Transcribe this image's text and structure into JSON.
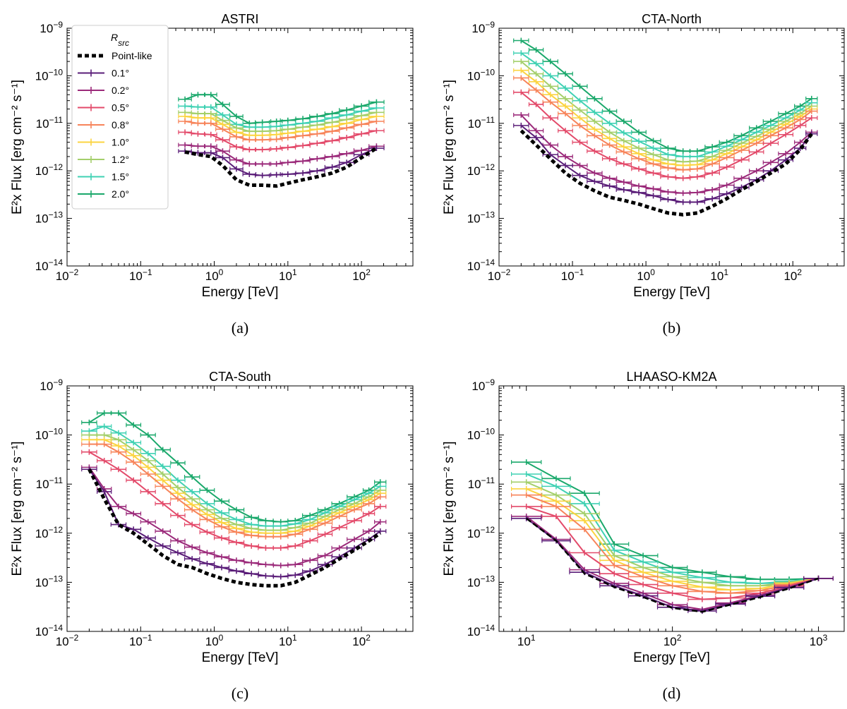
{
  "legend": {
    "title": "R",
    "title_sub": "src",
    "entries": [
      "Point-like",
      "0.1°",
      "0.2°",
      "0.5°",
      "0.8°",
      "1.0°",
      "1.2°",
      "1.5°",
      "2.0°"
    ]
  },
  "colors": {
    "Point-like": "#000000",
    "0.1°": "#5a1d78",
    "0.2°": "#9b2a7a",
    "0.5°": "#e34a6a",
    "0.8°": "#f7845a",
    "1.0°": "#fbd441",
    "1.2°": "#a4cf6b",
    "1.5°": "#3fd1b3",
    "2.0°": "#1aa86b"
  },
  "chart_data": [
    {
      "type": "line",
      "title": "ASTRI",
      "caption": "(a)",
      "xlabel": "Energy [TeV]",
      "ylabel": "E²x Flux [erg cm⁻² s⁻¹]",
      "xscale": "log",
      "yscale": "log",
      "xlim": [
        0.01,
        500
      ],
      "ylim": [
        1e-14,
        1e-09
      ],
      "xticks": [
        "10⁻²",
        "10⁻¹",
        "10⁰",
        "10¹",
        "10²"
      ],
      "yticks": [
        "10⁻¹⁴",
        "10⁻¹³",
        "10⁻¹²",
        "10⁻¹¹",
        "10⁻¹⁰",
        "10⁻⁹"
      ],
      "x": [
        0.4,
        0.6,
        0.9,
        1.3,
        2.0,
        3.0,
        4.5,
        7,
        10,
        16,
        25,
        40,
        63,
        100,
        160
      ],
      "series": [
        {
          "name": "Point-like",
          "values": [
            2.5e-12,
            2.2e-12,
            2e-12,
            1.3e-12,
            6.5e-13,
            5e-13,
            5e-13,
            4.8e-13,
            5.5e-13,
            6.5e-13,
            7.5e-13,
            9e-13,
            1.2e-12,
            1.9e-12,
            3e-12
          ]
        },
        {
          "name": "0.1°",
          "values": [
            2.6e-12,
            2.4e-12,
            2.4e-12,
            1.9e-12,
            1.1e-12,
            8.5e-13,
            8e-13,
            8.3e-13,
            8.5e-13,
            9e-13,
            1e-12,
            1.2e-12,
            1.5e-12,
            2.2e-12,
            3e-12
          ]
        },
        {
          "name": "0.2°",
          "values": [
            3.5e-12,
            3.3e-12,
            3.3e-12,
            2.6e-12,
            1.7e-12,
            1.4e-12,
            1.4e-12,
            1.4e-12,
            1.5e-12,
            1.6e-12,
            1.8e-12,
            2e-12,
            2.3e-12,
            2.7e-12,
            3.3e-12
          ]
        },
        {
          "name": "0.5°",
          "values": [
            6.5e-12,
            6e-12,
            5.8e-12,
            4.5e-12,
            3.2e-12,
            2.8e-12,
            2.8e-12,
            2.9e-12,
            3.1e-12,
            3.4e-12,
            3.8e-12,
            4.3e-12,
            5e-12,
            6e-12,
            7e-12
          ]
        },
        {
          "name": "0.8°",
          "values": [
            1.1e-11,
            1e-11,
            1e-11,
            7.5e-12,
            5.2e-12,
            4.5e-12,
            4.5e-12,
            4.6e-12,
            5e-12,
            5.5e-12,
            6e-12,
            6.8e-12,
            8e-12,
            9.5e-12,
            1.1e-11
          ]
        },
        {
          "name": "1.0°",
          "values": [
            1.4e-11,
            1.3e-11,
            1.3e-11,
            9.5e-12,
            6.5e-12,
            5.6e-12,
            5.6e-12,
            5.8e-12,
            6.2e-12,
            6.8e-12,
            7.5e-12,
            8.5e-12,
            1e-11,
            1.2e-11,
            1.4e-11
          ]
        },
        {
          "name": "1.2°",
          "values": [
            1.7e-11,
            1.6e-11,
            1.6e-11,
            1.15e-11,
            8e-12,
            6.8e-12,
            6.8e-12,
            7e-12,
            7.5e-12,
            8.3e-12,
            9.2e-12,
            1.05e-11,
            1.2e-11,
            1.45e-11,
            1.7e-11
          ]
        },
        {
          "name": "1.5°",
          "values": [
            2.3e-11,
            2.2e-11,
            2.2e-11,
            1.5e-11,
            9.5e-12,
            8.3e-12,
            8.3e-12,
            8.6e-12,
            9.2e-12,
            1e-11,
            1.1e-11,
            1.3e-11,
            1.5e-11,
            1.8e-11,
            2.1e-11
          ]
        },
        {
          "name": "2.0°",
          "values": [
            3.2e-11,
            4e-11,
            4e-11,
            2.5e-11,
            1.4e-11,
            1e-11,
            1.05e-11,
            1.1e-11,
            1.15e-11,
            1.25e-11,
            1.4e-11,
            1.6e-11,
            1.9e-11,
            2.3e-11,
            2.8e-11
          ]
        }
      ]
    },
    {
      "type": "line",
      "title": "CTA-North",
      "caption": "(b)",
      "xlabel": "Energy [TeV]",
      "ylabel": "E²x Flux [erg cm⁻² s⁻¹]",
      "xscale": "log",
      "yscale": "log",
      "xlim": [
        0.01,
        500
      ],
      "ylim": [
        1e-14,
        1e-09
      ],
      "xticks": [
        "10⁻²",
        "10⁻¹",
        "10⁰",
        "10¹",
        "10²"
      ],
      "yticks": [
        "10⁻¹⁴",
        "10⁻¹³",
        "10⁻¹²",
        "10⁻¹¹",
        "10⁻¹⁰",
        "10⁻⁹"
      ],
      "x": [
        0.02,
        0.032,
        0.05,
        0.08,
        0.126,
        0.2,
        0.32,
        0.5,
        0.8,
        1.26,
        2,
        3.2,
        5,
        8,
        12.6,
        20,
        32,
        50,
        80,
        126,
        180
      ],
      "series": [
        {
          "name": "Point-like",
          "values": [
            7e-12,
            3.5e-12,
            1.8e-12,
            9e-13,
            5.5e-13,
            3.8e-13,
            2.8e-13,
            2.4e-13,
            2e-13,
            1.6e-13,
            1.3e-13,
            1.2e-13,
            1.3e-13,
            1.8e-13,
            2.6e-13,
            4e-13,
            6e-13,
            9e-13,
            1.4e-12,
            2.8e-12,
            6e-12
          ]
        },
        {
          "name": "0.1°",
          "values": [
            9e-12,
            5e-12,
            2.2e-12,
            1.3e-12,
            8e-13,
            6e-13,
            4.8e-13,
            4e-13,
            3.5e-13,
            3e-13,
            2.5e-13,
            2.2e-13,
            2.2e-13,
            2.6e-13,
            3.3e-13,
            4.5e-13,
            6.5e-13,
            1e-12,
            1.7e-12,
            3e-12,
            6e-12
          ]
        },
        {
          "name": "0.2°",
          "values": [
            1.5e-11,
            7e-12,
            3.5e-12,
            2e-12,
            1.3e-12,
            9e-13,
            7e-13,
            5.8e-13,
            4.8e-13,
            4.2e-13,
            3.6e-13,
            3.4e-13,
            3.5e-13,
            4e-13,
            5e-13,
            7e-13,
            1e-12,
            1.5e-12,
            2.3e-12,
            4e-12,
            6.5e-12
          ]
        },
        {
          "name": "0.5°",
          "values": [
            4.5e-11,
            2.5e-11,
            1.3e-11,
            7e-12,
            4e-12,
            2.6e-12,
            1.8e-12,
            1.4e-12,
            1.1e-12,
            9e-13,
            7.5e-13,
            7e-13,
            7.5e-13,
            9e-13,
            1.2e-12,
            1.7e-12,
            2.5e-12,
            3.8e-12,
            5.8e-12,
            9e-12,
            1.3e-11
          ]
        },
        {
          "name": "0.8°",
          "values": [
            9e-11,
            5e-11,
            2.8e-11,
            1.6e-11,
            9e-12,
            5.5e-12,
            3.5e-12,
            2.5e-12,
            1.8e-12,
            1.4e-12,
            1.15e-12,
            1.05e-12,
            1.1e-12,
            1.4e-12,
            1.9e-12,
            2.7e-12,
            3.8e-12,
            5.5e-12,
            8e-12,
            1.2e-11,
            1.8e-11
          ]
        },
        {
          "name": "1.0°",
          "values": [
            1.3e-10,
            7.5e-11,
            4e-11,
            2.3e-11,
            1.3e-11,
            7.5e-12,
            4.8e-12,
            3.2e-12,
            2.3e-12,
            1.7e-12,
            1.4e-12,
            1.3e-12,
            1.35e-12,
            1.7e-12,
            2.3e-12,
            3.2e-12,
            4.5e-12,
            6.5e-12,
            9.5e-12,
            1.4e-11,
            2e-11
          ]
        },
        {
          "name": "1.2°",
          "values": [
            2e-10,
            1.1e-10,
            6e-11,
            3.3e-11,
            1.9e-11,
            1.1e-11,
            6.5e-12,
            4.3e-12,
            3e-12,
            2.2e-12,
            1.7e-12,
            1.55e-12,
            1.6e-12,
            2e-12,
            2.7e-12,
            3.8e-12,
            5.3e-12,
            7.5e-12,
            1.1e-11,
            1.6e-11,
            2.3e-11
          ]
        },
        {
          "name": "1.5°",
          "values": [
            3e-10,
            1.8e-10,
            1e-10,
            5.5e-11,
            3e-11,
            1.7e-11,
            1e-11,
            6.3e-12,
            4.2e-12,
            3e-12,
            2.2e-12,
            2e-12,
            2e-12,
            2.5e-12,
            3.3e-12,
            4.5e-12,
            6.5e-12,
            9e-12,
            1.3e-11,
            1.9e-11,
            2.7e-11
          ]
        },
        {
          "name": "2.0°",
          "values": [
            5.5e-10,
            3.5e-10,
            2e-10,
            1.1e-10,
            6e-11,
            3.3e-11,
            1.8e-11,
            1.1e-11,
            6.5e-12,
            4.3e-12,
            3e-12,
            2.6e-12,
            2.6e-12,
            3.2e-12,
            4e-12,
            5.5e-12,
            8e-12,
            1.1e-11,
            1.6e-11,
            2.3e-11,
            3.3e-11
          ]
        }
      ]
    },
    {
      "type": "line",
      "title": "CTA-South",
      "caption": "(c)",
      "xlabel": "Energy [TeV]",
      "ylabel": "E²x Flux [erg cm⁻² s⁻¹]",
      "xscale": "log",
      "yscale": "log",
      "xlim": [
        0.01,
        500
      ],
      "ylim": [
        1e-14,
        1e-09
      ],
      "xticks": [
        "10⁻²",
        "10⁻¹",
        "10⁰",
        "10¹",
        "10²"
      ],
      "yticks": [
        "10⁻¹⁴",
        "10⁻¹³",
        "10⁻¹²",
        "10⁻¹¹",
        "10⁻¹⁰",
        "10⁻⁹"
      ],
      "x": [
        0.02,
        0.032,
        0.05,
        0.08,
        0.126,
        0.2,
        0.32,
        0.5,
        0.8,
        1.26,
        2,
        3.2,
        5,
        8,
        12.6,
        20,
        32,
        50,
        80,
        126,
        180
      ],
      "series": [
        {
          "name": "Point-like",
          "values": [
            2e-11,
            5e-12,
            1.5e-12,
            1e-12,
            6e-13,
            3.5e-13,
            2.3e-13,
            2e-13,
            1.5e-13,
            1.2e-13,
            1e-13,
            9e-14,
            8.5e-14,
            8.5e-14,
            1e-13,
            1.4e-13,
            2e-13,
            3e-13,
            4.5e-13,
            7e-13,
            1e-12
          ]
        },
        {
          "name": "0.1°",
          "values": [
            2e-11,
            7e-12,
            1.5e-12,
            1.2e-12,
            8e-13,
            5.5e-13,
            4e-13,
            3e-13,
            2.4e-13,
            2e-13,
            1.7e-13,
            1.5e-13,
            1.35e-13,
            1.3e-13,
            1.4e-13,
            1.7e-13,
            2.3e-13,
            3.3e-13,
            5e-13,
            7.5e-13,
            1.1e-12
          ]
        },
        {
          "name": "0.2°",
          "values": [
            2.2e-11,
            8e-12,
            3.5e-12,
            2.5e-12,
            1.7e-12,
            1.1e-12,
            7e-13,
            5.2e-13,
            4e-13,
            3.3e-13,
            2.8e-13,
            2.5e-13,
            2.3e-13,
            2.2e-13,
            2.3e-13,
            2.8e-13,
            3.5e-13,
            5e-13,
            7.5e-13,
            1.1e-12,
            1.7e-12
          ]
        },
        {
          "name": "0.5°",
          "values": [
            4.5e-11,
            3e-11,
            2e-11,
            1.2e-11,
            7e-12,
            4e-12,
            2.3e-12,
            1.5e-12,
            1.05e-12,
            8e-13,
            6.5e-13,
            5.5e-13,
            5e-13,
            5e-13,
            5.5e-13,
            7e-13,
            9.5e-13,
            1.3e-12,
            1.8e-12,
            2.5e-12,
            3.5e-12
          ]
        },
        {
          "name": "0.8°",
          "values": [
            6.5e-11,
            6.5e-11,
            4.5e-11,
            2.8e-11,
            1.6e-11,
            9e-12,
            5e-12,
            3e-12,
            1.9e-12,
            1.35e-12,
            1.05e-12,
            9e-13,
            8.5e-13,
            8.5e-13,
            9.5e-13,
            1.2e-12,
            1.6e-12,
            2.2e-12,
            3e-12,
            4e-12,
            5.5e-12
          ]
        },
        {
          "name": "1.0°",
          "values": [
            8e-11,
            8e-11,
            6e-11,
            3.8e-11,
            2.2e-11,
            1.2e-11,
            6.5e-12,
            3.8e-12,
            2.4e-12,
            1.65e-12,
            1.25e-12,
            1.05e-12,
            1e-12,
            1e-12,
            1.1e-12,
            1.4e-12,
            1.9e-12,
            2.6e-12,
            3.5e-12,
            4.8e-12,
            6.5e-12
          ]
        },
        {
          "name": "1.2°",
          "values": [
            1e-10,
            1e-10,
            8e-11,
            5e-11,
            3e-11,
            1.6e-11,
            8.5e-12,
            5e-12,
            3e-12,
            2e-12,
            1.5e-12,
            1.25e-12,
            1.15e-12,
            1.15e-12,
            1.3e-12,
            1.6e-12,
            2.2e-12,
            3e-12,
            4e-12,
            5.5e-12,
            7.5e-12
          ]
        },
        {
          "name": "1.5°",
          "values": [
            1.2e-10,
            1.5e-10,
            1.1e-10,
            7e-11,
            4.2e-11,
            2.3e-11,
            1.2e-11,
            7e-12,
            4e-12,
            2.6e-12,
            1.9e-12,
            1.5e-12,
            1.4e-12,
            1.4e-12,
            1.55e-12,
            1.9e-12,
            2.6e-12,
            3.5e-12,
            4.8e-12,
            6.5e-12,
            9e-12
          ]
        },
        {
          "name": "2.0°",
          "values": [
            1.8e-10,
            2.8e-10,
            2.8e-10,
            1.6e-10,
            1e-10,
            5e-11,
            2.7e-11,
            1.4e-11,
            7.5e-12,
            4.5e-12,
            3e-12,
            2.1e-12,
            1.8e-12,
            1.7e-12,
            1.8e-12,
            2.3e-12,
            3e-12,
            4e-12,
            5.5e-12,
            7.5e-12,
            1.1e-11
          ]
        }
      ]
    },
    {
      "type": "line",
      "title": "LHAASO-KM2A",
      "caption": "(d)",
      "xlabel": "Energy [TeV]",
      "ylabel": "E²x Flux [erg cm⁻² s⁻¹]",
      "xscale": "log",
      "yscale": "log",
      "xlim": [
        6.5,
        1500
      ],
      "ylim": [
        1e-14,
        1e-09
      ],
      "xticks": [
        "10¹",
        "10²",
        "10³"
      ],
      "yticks": [
        "10⁻¹⁴",
        "10⁻¹³",
        "10⁻¹²",
        "10⁻¹¹",
        "10⁻¹⁰",
        "10⁻⁹"
      ],
      "x": [
        10,
        16,
        25,
        40,
        63,
        100,
        160,
        250,
        400,
        630,
        1000
      ],
      "series": [
        {
          "name": "Point-like",
          "values": [
            2e-12,
            7e-13,
            1.5e-13,
            8e-14,
            5e-14,
            3e-14,
            2.5e-14,
            3.5e-14,
            5e-14,
            7.5e-14,
            1.2e-13
          ]
        },
        {
          "name": "0.1°",
          "values": [
            2e-12,
            7e-13,
            1.6e-13,
            8.5e-14,
            5.3e-14,
            3.1e-14,
            2.6e-14,
            3.6e-14,
            5.2e-14,
            7.8e-14,
            1.2e-13
          ]
        },
        {
          "name": "0.2°",
          "values": [
            2.2e-12,
            7.5e-13,
            1.8e-13,
            9.5e-14,
            6e-14,
            3.5e-14,
            2.8e-14,
            3.8e-14,
            5.5e-14,
            8e-14,
            1.2e-13
          ]
        },
        {
          "name": "0.5°",
          "values": [
            3.5e-12,
            2.2e-12,
            4e-13,
            1.5e-13,
            9e-14,
            6e-14,
            4.5e-14,
            4.8e-14,
            6e-14,
            8.5e-14,
            1.2e-13
          ]
        },
        {
          "name": "0.8°",
          "values": [
            6e-12,
            3.5e-12,
            1.2e-12,
            2.2e-13,
            1.3e-13,
            8.5e-14,
            6.5e-14,
            6e-14,
            6.8e-14,
            9e-14,
            1.2e-13
          ]
        },
        {
          "name": "1.0°",
          "values": [
            8e-12,
            4.5e-12,
            1.8e-12,
            2.8e-13,
            1.6e-13,
            1.05e-13,
            8e-14,
            7e-14,
            7.5e-14,
            9.5e-14,
            1.2e-13
          ]
        },
        {
          "name": "1.2°",
          "values": [
            1.1e-11,
            6e-12,
            2.5e-12,
            3.5e-13,
            2e-13,
            1.3e-13,
            1e-13,
            8.5e-14,
            8.5e-14,
            1e-13,
            1.2e-13
          ]
        },
        {
          "name": "1.5°",
          "values": [
            1.6e-11,
            9e-12,
            4e-12,
            4.5e-13,
            2.6e-13,
            1.6e-13,
            1.25e-13,
            1e-13,
            9.5e-14,
            1.05e-13,
            1.2e-13
          ]
        },
        {
          "name": "2.0°",
          "values": [
            2.8e-11,
            1.3e-11,
            6.5e-12,
            6e-13,
            3.5e-13,
            2e-13,
            1.6e-13,
            1.3e-13,
            1.15e-13,
            1.15e-13,
            1.2e-13
          ]
        }
      ]
    }
  ]
}
